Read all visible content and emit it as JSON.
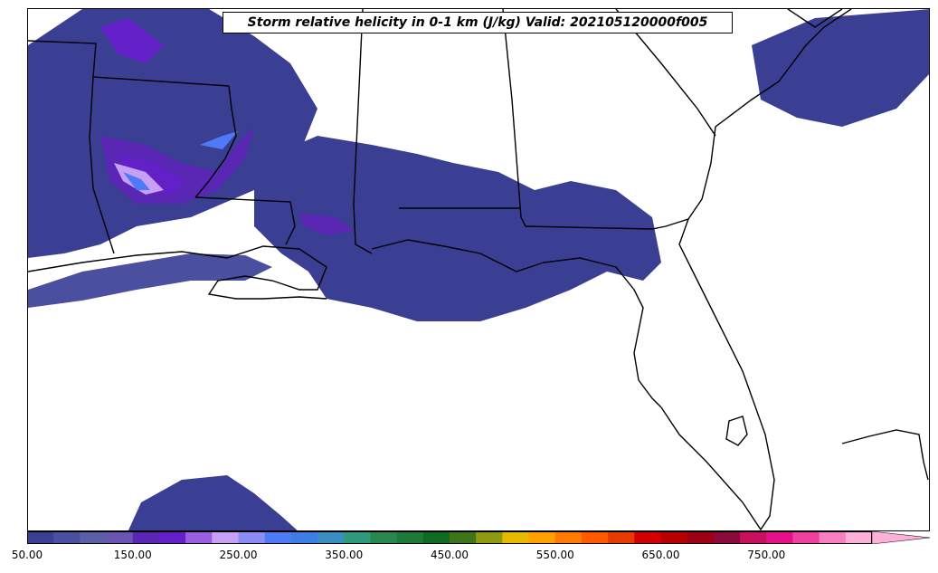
{
  "title": "Storm relative helicity in 0-1 km (J/kg) Valid: 202105120000f005",
  "colorbar": {
    "tick_labels": [
      "50.00",
      "150.00",
      "250.00",
      "350.00",
      "450.00",
      "550.00",
      "650.00",
      "750.00"
    ],
    "min": 50,
    "step": 25,
    "extend": "max",
    "colors": [
      "#3b3f94",
      "#4a4f9f",
      "#5b5fa8",
      "#6a55b0",
      "#5a26b4",
      "#6420c8",
      "#9a5ee0",
      "#c7a0f5",
      "#8c8cf5",
      "#4f7af5",
      "#3d7ee6",
      "#3a8ec0",
      "#2f9a7c",
      "#27874f",
      "#1f7a3a",
      "#0f6b21",
      "#3e7518",
      "#8f9a14",
      "#e6b800",
      "#ff9f00",
      "#ff7a00",
      "#ff5a00",
      "#e63a00",
      "#d40000",
      "#b80000",
      "#9c0012",
      "#8c0a3a",
      "#c8105e",
      "#e6108a",
      "#f0409e",
      "#f77fc0",
      "#ffb0d8"
    ]
  }
}
